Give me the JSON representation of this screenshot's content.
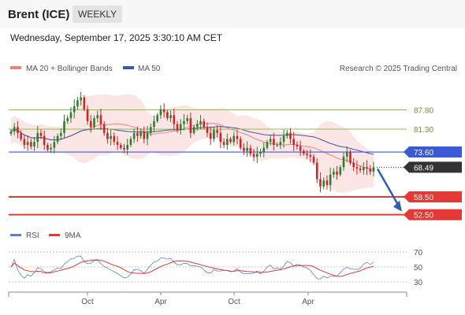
{
  "header": {
    "title": "Brent (ICE)",
    "timeframe": "WEEKLY"
  },
  "datetime": "Wednesday, September 17, 2025 3:30:10 AM CET",
  "legend": {
    "ma20_label": "MA 20 + Bollinger Bands",
    "ma50_label": "MA 50",
    "research": "Research © 2025 Trading Central",
    "rsi_label": "RSI",
    "rsi_ma_label": "9MA"
  },
  "colors": {
    "up": "#2e7d32",
    "down": "#c62828",
    "band": "#fbdcdc",
    "ma20": "#f08080",
    "ma50": "#3b57a7",
    "resistance": "#8bc34a",
    "support": "#e53935",
    "current": "#333333",
    "pivot": "#3b5bd6",
    "rsi": "#5b7fd6",
    "rsi_ma": "#e53935",
    "arrow": "#2f5fa8"
  },
  "chart_data": [
    {
      "type": "candlestick",
      "title": "Brent (ICE) weekly",
      "x_labels": [
        "Oct",
        "Apr",
        "Oct",
        "Apr"
      ],
      "levels": [
        {
          "value": 87.8,
          "label": "87.80",
          "role": "resistance"
        },
        {
          "value": 81.3,
          "label": "81.30",
          "role": "resistance"
        },
        {
          "value": 73.6,
          "label": "73.60",
          "role": "pivot"
        },
        {
          "value": 68.49,
          "label": "68.49",
          "role": "current"
        },
        {
          "value": 58.5,
          "label": "58.50",
          "role": "support"
        },
        {
          "value": 52.5,
          "label": "52.50",
          "role": "support"
        }
      ],
      "last_close": 68.49,
      "projection": {
        "from": 68.49,
        "to": 52.5
      },
      "closes": [
        80.5,
        82,
        80,
        78,
        76,
        77,
        75.5,
        77,
        80,
        79,
        76,
        74.5,
        75,
        77,
        79,
        80,
        84,
        85,
        87,
        89,
        91,
        92,
        88,
        84,
        82,
        85,
        86,
        83,
        80,
        78,
        79,
        77,
        76,
        75,
        74.5,
        76,
        78,
        80,
        79,
        80.5,
        78,
        80,
        82,
        84,
        86,
        88,
        87,
        85,
        86,
        83,
        81,
        83,
        84,
        85,
        80,
        82,
        83,
        84,
        82,
        80,
        78,
        81,
        80,
        77,
        76,
        78,
        77,
        79,
        78,
        75,
        74,
        75,
        73,
        72,
        73,
        73.5,
        75,
        77,
        78,
        76,
        76,
        77,
        79,
        80,
        78,
        76,
        75.5,
        74,
        73,
        72.5,
        72,
        70,
        64.5,
        62,
        64,
        62.5,
        66,
        67,
        66,
        68.5,
        72,
        73.5,
        70,
        68.5,
        68,
        67.5,
        68.5,
        68,
        67,
        68.49
      ]
    },
    {
      "type": "line",
      "title": "RSI",
      "y_ticks": [
        70,
        50,
        30
      ],
      "ylim": [
        20,
        80
      ]
    }
  ]
}
